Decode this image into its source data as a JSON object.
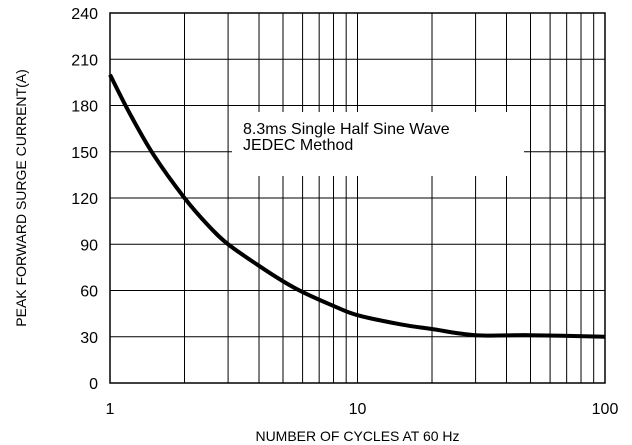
{
  "chart_data": {
    "type": "line",
    "title": "",
    "xlabel": "NUMBER OF CYCLES AT 60 Hz",
    "ylabel": "PEAK FORWARD SURGE CURRENT(A)",
    "x_scale": "log",
    "xlim": [
      1,
      100
    ],
    "ylim": [
      0,
      240
    ],
    "x_ticks": [
      1,
      10,
      100
    ],
    "x_tick_labels": [
      "1",
      "10",
      "100"
    ],
    "y_ticks": [
      0,
      30,
      60,
      90,
      120,
      150,
      180,
      210,
      240
    ],
    "y_tick_labels": [
      "0",
      "30",
      "60",
      "90",
      "120",
      "150",
      "180",
      "210",
      "240"
    ],
    "grid": true,
    "annotation": [
      "8.3ms Single Half Sine Wave",
      "JEDEC Method"
    ],
    "series": [
      {
        "x": [
          1,
          1.2,
          1.5,
          2,
          2.5,
          3,
          4,
          5,
          6,
          8,
          10,
          15,
          20,
          30,
          50,
          100
        ],
        "y": [
          200,
          175,
          148,
          120,
          102,
          90,
          76,
          66,
          59,
          50,
          44,
          38,
          35,
          31,
          31,
          30
        ]
      }
    ],
    "line_color": "#000000"
  }
}
